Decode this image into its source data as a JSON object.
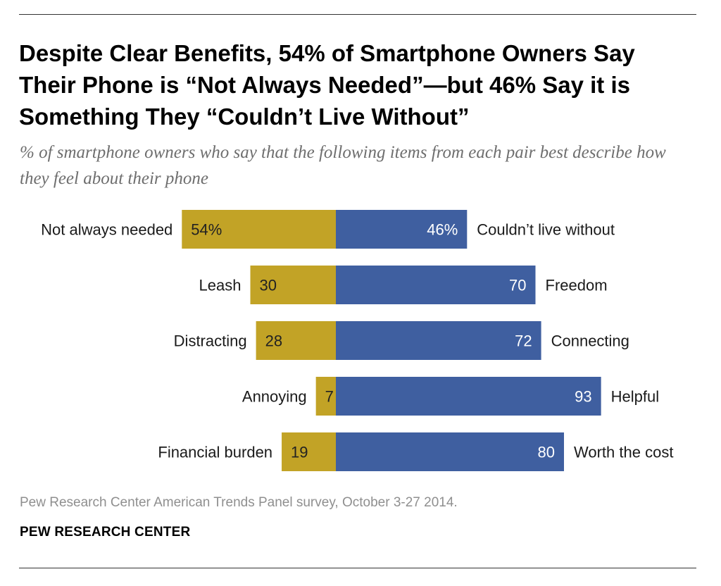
{
  "title": "Despite Clear Benefits, 54% of Smartphone Owners Say Their Phone is “Not Always Needed”—but 46% Say it is Something They “Couldn’t Live Without”",
  "subtitle": "% of smartphone owners who say that the following items from each pair best describe how they feel about their phone",
  "source": "Pew Research Center American Trends Panel survey, October 3-27 2014.",
  "brand": "PEW RESEARCH CENTER",
  "colors": {
    "left_bar": "#c2a326",
    "right_bar": "#3f5fa0",
    "left_value_text": "#222222",
    "right_value_text": "#ffffff",
    "label_text": "#1a1a1a"
  },
  "chart_data": {
    "type": "bar",
    "orientation": "horizontal-diverging",
    "title": "Despite Clear Benefits, 54% of Smartphone Owners Say Their Phone is “Not Always Needed”—but 46% Say it is Something They “Couldn’t Live Without”",
    "xlabel": "",
    "ylabel": "",
    "unit": "%",
    "rows": [
      {
        "left_label": "Not always needed",
        "left_value": 54,
        "left_display": "54%",
        "right_label": "Couldn’t live without",
        "right_value": 46,
        "right_display": "46%"
      },
      {
        "left_label": "Leash",
        "left_value": 30,
        "left_display": "30",
        "right_label": "Freedom",
        "right_value": 70,
        "right_display": "70"
      },
      {
        "left_label": "Distracting",
        "left_value": 28,
        "left_display": "28",
        "right_label": "Connecting",
        "right_value": 72,
        "right_display": "72"
      },
      {
        "left_label": "Annoying",
        "left_value": 7,
        "left_display": "7",
        "right_label": "Helpful",
        "right_value": 93,
        "right_display": "93"
      },
      {
        "left_label": "Financial burden",
        "left_value": 19,
        "left_display": "19",
        "right_label": "Worth the cost",
        "right_value": 80,
        "right_display": "80"
      }
    ]
  }
}
